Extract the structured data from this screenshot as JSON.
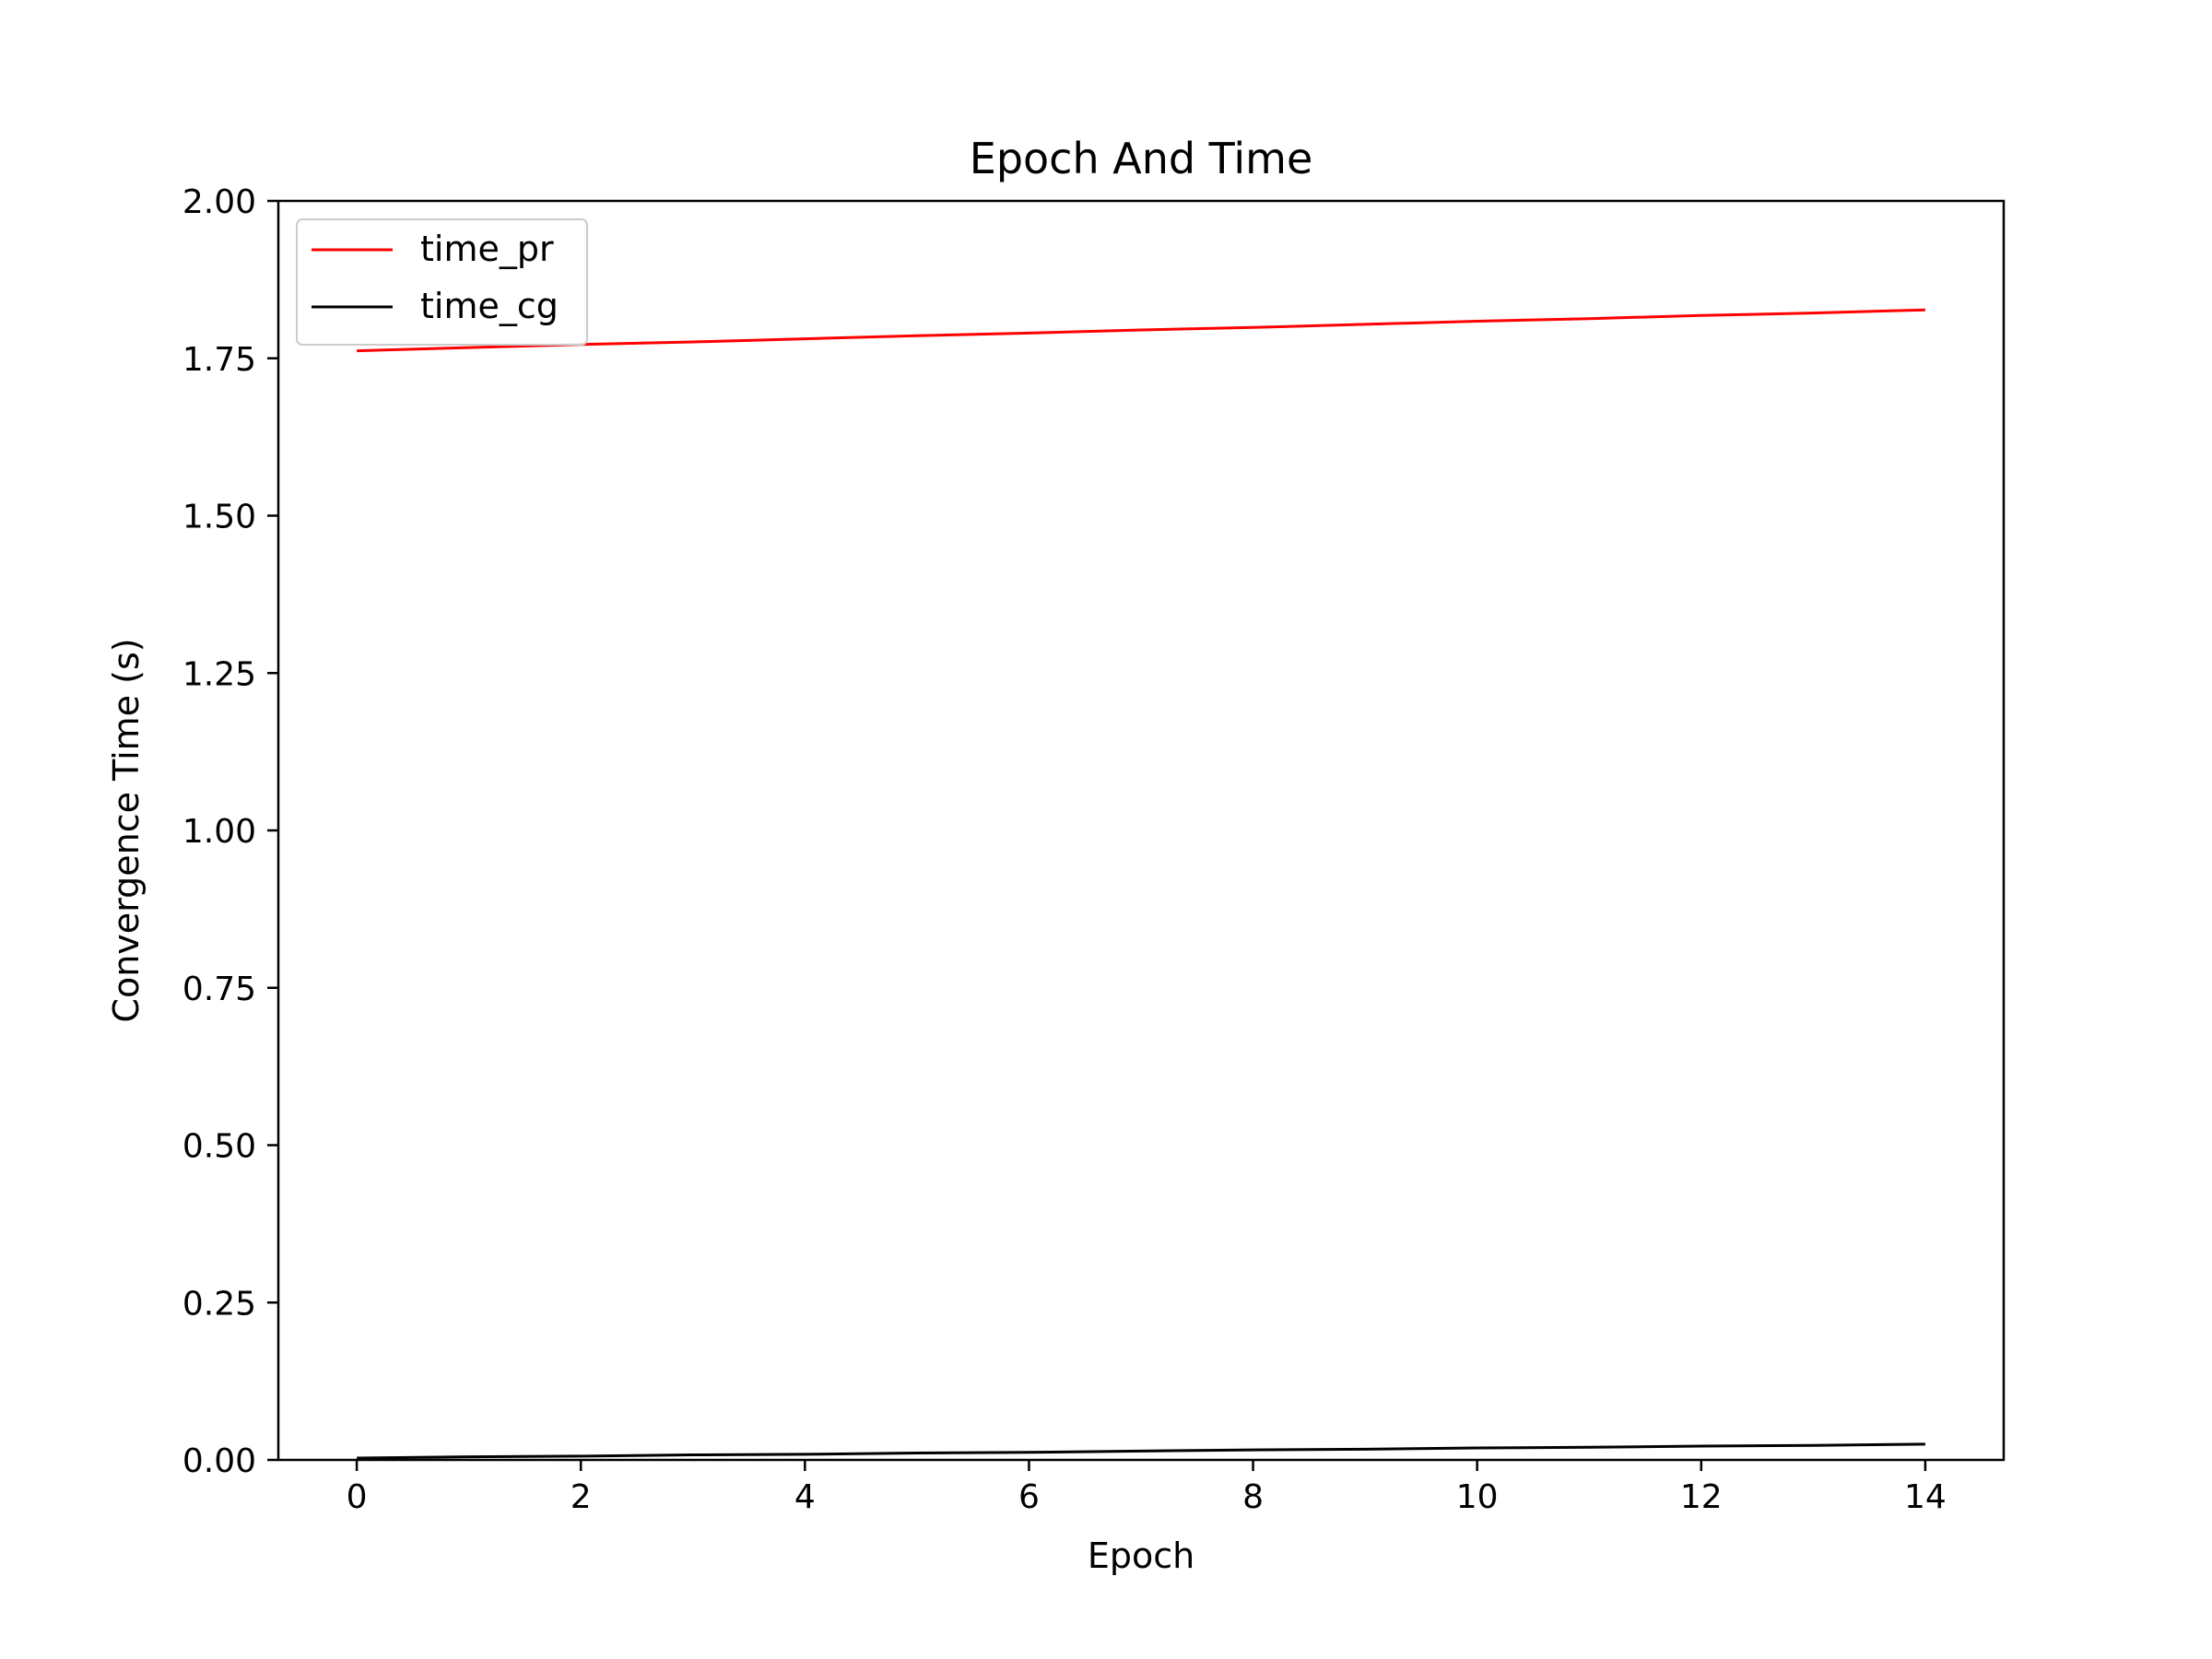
{
  "chart_data": {
    "type": "line",
    "title": "Epoch And Time",
    "xlabel": "Epoch",
    "ylabel": "Convergence Time (s)",
    "xlim": [
      -0.7,
      14.7
    ],
    "ylim": [
      0,
      2
    ],
    "xticks": [
      0,
      2,
      4,
      6,
      8,
      10,
      12,
      14
    ],
    "xtick_labels": [
      "0",
      "2",
      "4",
      "6",
      "8",
      "10",
      "12",
      "14"
    ],
    "yticks": [
      0,
      0.25,
      0.5,
      0.75,
      1.0,
      1.25,
      1.5,
      1.75,
      2.0
    ],
    "ytick_labels": [
      "0.00",
      "0.25",
      "0.50",
      "0.75",
      "1.00",
      "1.25",
      "1.50",
      "1.75",
      "2.00"
    ],
    "grid": false,
    "legend_position": "upper-left",
    "x": [
      0,
      1,
      2,
      3,
      4,
      5,
      6,
      7,
      8,
      9,
      10,
      11,
      12,
      13,
      14
    ],
    "series": [
      {
        "name": "time_pr",
        "color": "#ff0000",
        "values": [
          1.762,
          1.767,
          1.772,
          1.776,
          1.781,
          1.786,
          1.79,
          1.795,
          1.799,
          1.804,
          1.809,
          1.813,
          1.818,
          1.822,
          1.827
        ]
      },
      {
        "name": "time_cg",
        "color": "#000000",
        "values": [
          0.003,
          0.005,
          0.006,
          0.008,
          0.009,
          0.011,
          0.012,
          0.014,
          0.016,
          0.017,
          0.019,
          0.02,
          0.022,
          0.023,
          0.025
        ]
      }
    ]
  }
}
